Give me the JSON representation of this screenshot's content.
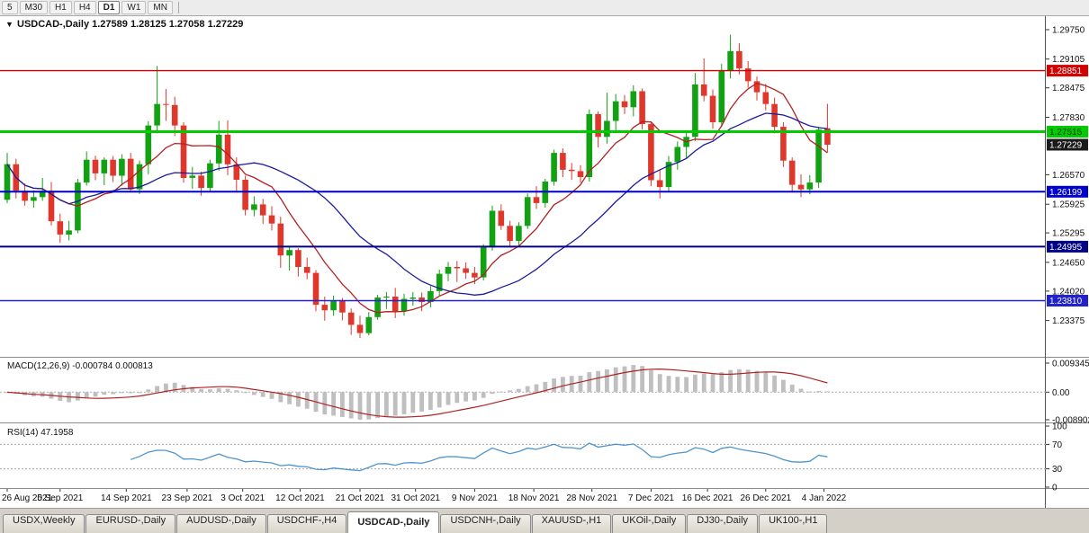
{
  "toolbar": {
    "timeframes": [
      "5",
      "M30",
      "H1",
      "H4",
      "D1",
      "W1",
      "MN"
    ],
    "active": "D1"
  },
  "icons": {
    "legend_arrow": "▼"
  },
  "legend": {
    "symbol": "USDCAD-,Daily",
    "open": "1.27589",
    "high": "1.28125",
    "low": "1.27058",
    "close": "1.27229"
  },
  "price_axis": {
    "ticks": [
      "1.29750",
      "1.29105",
      "1.28475",
      "1.27830",
      "1.26570",
      "1.25925",
      "1.25295",
      "1.24650",
      "1.24020",
      "1.23375"
    ],
    "current": {
      "value": "1.27229",
      "bg": "#1a1a1a",
      "fg": "#ffffff"
    }
  },
  "levels": [
    {
      "price": "1.28851",
      "color": "#d40000",
      "width": 1.4,
      "label_fg": "#ffffff"
    },
    {
      "price": "1.27515",
      "color": "#00cc00",
      "width": 3,
      "label_fg": "#003300"
    },
    {
      "price": "1.26199",
      "color": "#0000cd",
      "width": 2,
      "label_fg": "#ffffff"
    },
    {
      "price": "1.24995",
      "color": "#00008b",
      "width": 2,
      "label_fg": "#ffffff"
    },
    {
      "price": "1.23810",
      "color": "#2222cc",
      "width": 1.4,
      "label_fg": "#ffffff"
    }
  ],
  "time_axis": {
    "indices": [
      0,
      6,
      13.5,
      20.4,
      26.7,
      33.2,
      40,
      46.3,
      53,
      59.7,
      66.3,
      73,
      79.4,
      86,
      92.6
    ]
  },
  "macd": {
    "label": "MACD(12,26,9)",
    "value_main": "-0.000784",
    "value_signal": "0.000813",
    "axis_top": "0.009345",
    "axis_mid": "0.00",
    "axis_bottom": "-0.008902"
  },
  "rsi": {
    "label": "RSI(14)",
    "value": "47.1958",
    "axis": [
      "100",
      "70",
      "30",
      "0"
    ]
  },
  "tabs": {
    "items": [
      "USDX,Weekly",
      "EURUSD-,Daily",
      "AUDUSD-,Daily",
      "USDCHF-,H4",
      "USDCAD-,Daily",
      "USDCNH-,Daily",
      "XAUUSD-,H1",
      "UKOil-,Daily",
      "DJ30-,Daily",
      "UK100-,H1"
    ],
    "active": "USDCAD-,Daily"
  },
  "colors": {
    "bull": "#12a112",
    "bear": "#e0372c",
    "ma_fast": "#b22222",
    "ma_slow": "#1c1c9e",
    "macd_hist": "#bfbfbf",
    "macd_signal": "#b22222",
    "rsi_line": "#4f94cd",
    "grid_dotted": "#aaaaaa",
    "axis_text": "#111111"
  },
  "chart_data": {
    "type": "candlestick",
    "symbol": "USDCAD",
    "timeframe": "Daily",
    "y_visible_range": [
      1.2265,
      1.2995
    ],
    "x_labels": [
      "26 Aug 2021",
      "5 Sep 2021",
      "14 Sep 2021",
      "23 Sep 2021",
      "3 Oct 2021",
      "12 Oct 2021",
      "21 Oct 2021",
      "31 Oct 2021",
      "9 Nov 2021",
      "18 Nov 2021",
      "28 Nov 2021",
      "7 Dec 2021",
      "16 Dec 2021",
      "26 Dec 2021",
      "4 Jan 2022"
    ],
    "overlays": {
      "ma_fast_period": 8,
      "ma_slow_period": 21
    },
    "candles": [
      [
        1.2602,
        1.2705,
        1.2595,
        1.268
      ],
      [
        1.268,
        1.2692,
        1.2605,
        1.2622
      ],
      [
        1.2622,
        1.2638,
        1.2589,
        1.26
      ],
      [
        1.26,
        1.2623,
        1.2585,
        1.2608
      ],
      [
        1.2608,
        1.265,
        1.26,
        1.2622
      ],
      [
        1.2622,
        1.2641,
        1.2546,
        1.2555
      ],
      [
        1.2555,
        1.2572,
        1.2508,
        1.2526
      ],
      [
        1.2526,
        1.2556,
        1.2513,
        1.2535
      ],
      [
        1.2535,
        1.2648,
        1.2529,
        1.264
      ],
      [
        1.264,
        1.2708,
        1.2633,
        1.269
      ],
      [
        1.269,
        1.2699,
        1.2645,
        1.266
      ],
      [
        1.266,
        1.2695,
        1.2634,
        1.269
      ],
      [
        1.269,
        1.2698,
        1.2641,
        1.2655
      ],
      [
        1.2655,
        1.2702,
        1.2633,
        1.2692
      ],
      [
        1.2692,
        1.2705,
        1.262,
        1.2625
      ],
      [
        1.2625,
        1.2688,
        1.2615,
        1.268
      ],
      [
        1.268,
        1.2774,
        1.2658,
        1.2765
      ],
      [
        1.2765,
        1.2895,
        1.2748,
        1.2812
      ],
      [
        1.2812,
        1.2845,
        1.2775,
        1.281
      ],
      [
        1.281,
        1.2828,
        1.2742,
        1.2765
      ],
      [
        1.2765,
        1.2772,
        1.264,
        1.265
      ],
      [
        1.265,
        1.2674,
        1.2626,
        1.2655
      ],
      [
        1.2655,
        1.2664,
        1.2611,
        1.2628
      ],
      [
        1.2628,
        1.269,
        1.2619,
        1.2682
      ],
      [
        1.2682,
        1.2775,
        1.2666,
        1.2745
      ],
      [
        1.2745,
        1.2776,
        1.2656,
        1.268
      ],
      [
        1.268,
        1.2695,
        1.2622,
        1.2646
      ],
      [
        1.2646,
        1.2655,
        1.2568,
        1.258
      ],
      [
        1.258,
        1.261,
        1.2566,
        1.2592
      ],
      [
        1.2592,
        1.2604,
        1.2549,
        1.2568
      ],
      [
        1.2568,
        1.2588,
        1.2535,
        1.255
      ],
      [
        1.255,
        1.2565,
        1.2453,
        1.248
      ],
      [
        1.248,
        1.2499,
        1.2447,
        1.2492
      ],
      [
        1.2492,
        1.2496,
        1.2434,
        1.2455
      ],
      [
        1.2455,
        1.2475,
        1.2428,
        1.2442
      ],
      [
        1.2442,
        1.2448,
        1.2358,
        1.2372
      ],
      [
        1.2372,
        1.239,
        1.2337,
        1.236
      ],
      [
        1.236,
        1.2392,
        1.2348,
        1.238
      ],
      [
        1.238,
        1.2387,
        1.2338,
        1.2355
      ],
      [
        1.2355,
        1.2364,
        1.2306,
        1.2328
      ],
      [
        1.2328,
        1.2348,
        1.2299,
        1.231
      ],
      [
        1.231,
        1.2356,
        1.2305,
        1.2345
      ],
      [
        1.2345,
        1.2394,
        1.2339,
        1.2388
      ],
      [
        1.2388,
        1.24,
        1.2363,
        1.239
      ],
      [
        1.239,
        1.2409,
        1.2343,
        1.2358
      ],
      [
        1.2358,
        1.2396,
        1.2348,
        1.2385
      ],
      [
        1.2385,
        1.24,
        1.237,
        1.2388
      ],
      [
        1.2388,
        1.2399,
        1.2358,
        1.2378
      ],
      [
        1.2378,
        1.2413,
        1.2366,
        1.2402
      ],
      [
        1.2402,
        1.2449,
        1.2392,
        1.244
      ],
      [
        1.244,
        1.2466,
        1.2424,
        1.2455
      ],
      [
        1.2455,
        1.2468,
        1.2422,
        1.2452
      ],
      [
        1.2452,
        1.2465,
        1.2429,
        1.2442
      ],
      [
        1.2442,
        1.2455,
        1.2417,
        1.2432
      ],
      [
        1.2432,
        1.2505,
        1.2425,
        1.2498
      ],
      [
        1.2498,
        1.2589,
        1.2491,
        1.2578
      ],
      [
        1.2578,
        1.2592,
        1.2536,
        1.2545
      ],
      [
        1.2545,
        1.2556,
        1.2501,
        1.2512
      ],
      [
        1.2512,
        1.2553,
        1.25,
        1.2545
      ],
      [
        1.2545,
        1.2616,
        1.2538,
        1.2608
      ],
      [
        1.2608,
        1.2632,
        1.2582,
        1.2595
      ],
      [
        1.2595,
        1.2648,
        1.2585,
        1.2642
      ],
      [
        1.2642,
        1.2712,
        1.2633,
        1.2705
      ],
      [
        1.2705,
        1.2715,
        1.2652,
        1.2668
      ],
      [
        1.2668,
        1.2683,
        1.2646,
        1.2665
      ],
      [
        1.2665,
        1.2678,
        1.264,
        1.2652
      ],
      [
        1.2652,
        1.28,
        1.2642,
        1.279
      ],
      [
        1.279,
        1.2796,
        1.2717,
        1.274
      ],
      [
        1.274,
        1.2837,
        1.2725,
        1.2775
      ],
      [
        1.2775,
        1.2834,
        1.2748,
        1.2818
      ],
      [
        1.2818,
        1.2832,
        1.279,
        1.2805
      ],
      [
        1.2805,
        1.2853,
        1.2785,
        1.284
      ],
      [
        1.284,
        1.2846,
        1.2756,
        1.2768
      ],
      [
        1.2768,
        1.2772,
        1.2632,
        1.2645
      ],
      [
        1.2645,
        1.2668,
        1.2605,
        1.263
      ],
      [
        1.263,
        1.2698,
        1.2621,
        1.2685
      ],
      [
        1.2685,
        1.273,
        1.2668,
        1.2718
      ],
      [
        1.2718,
        1.275,
        1.2693,
        1.274
      ],
      [
        1.274,
        1.288,
        1.2731,
        1.2855
      ],
      [
        1.2855,
        1.2912,
        1.2818,
        1.283
      ],
      [
        1.283,
        1.2844,
        1.2758,
        1.2772
      ],
      [
        1.2772,
        1.29,
        1.2762,
        1.2885
      ],
      [
        1.2885,
        1.2964,
        1.2868,
        1.2928
      ],
      [
        1.2928,
        1.2945,
        1.2877,
        1.289
      ],
      [
        1.289,
        1.2906,
        1.2848,
        1.2862
      ],
      [
        1.2862,
        1.2872,
        1.282,
        1.2838
      ],
      [
        1.2838,
        1.2856,
        1.2798,
        1.2812
      ],
      [
        1.2812,
        1.2826,
        1.2748,
        1.2762
      ],
      [
        1.2762,
        1.2772,
        1.2674,
        1.2688
      ],
      [
        1.2688,
        1.2695,
        1.2618,
        1.2635
      ],
      [
        1.2635,
        1.2658,
        1.2608,
        1.2625
      ],
      [
        1.2625,
        1.2656,
        1.2614,
        1.264
      ],
      [
        1.264,
        1.2762,
        1.2628,
        1.2756
      ],
      [
        1.27589,
        1.28125,
        1.27058,
        1.27229
      ]
    ]
  }
}
